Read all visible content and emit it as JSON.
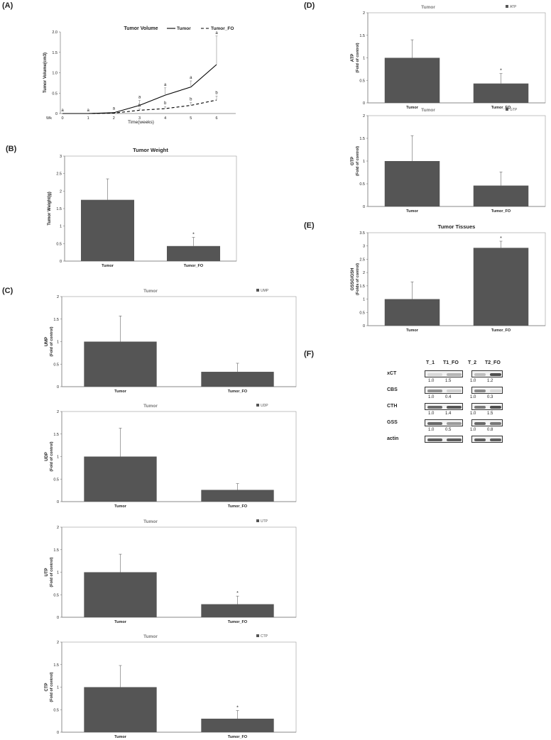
{
  "panels": {
    "A": "(A)",
    "B": "(B)",
    "C": "(C)",
    "D": "(D)",
    "E": "(E)",
    "F": "(F)"
  },
  "colors": {
    "bar": "#555555",
    "axis": "#888888"
  },
  "chart_data": [
    {
      "id": "A",
      "type": "line",
      "title": "Tumor Volume",
      "xlabel": "Time(weeks)",
      "ylabel": "Tumor Volume(cm3)",
      "x": [
        0,
        1,
        2,
        3,
        4,
        5,
        6
      ],
      "x_prefix": "Wk",
      "ylim": [
        0,
        2.0
      ],
      "yticks": [
        "0",
        "0.5",
        "1.0",
        "1.5",
        "2.0"
      ],
      "series": [
        {
          "name": "Tumor",
          "style": "solid",
          "values": [
            0,
            0,
            0.02,
            0.2,
            0.45,
            0.65,
            1.2
          ],
          "err": [
            0,
            0,
            0.02,
            0.12,
            0.18,
            0.15,
            0.7
          ],
          "labels": [
            "a",
            "a",
            "a",
            "a",
            "a",
            "a",
            "a"
          ]
        },
        {
          "name": "Tumor_FO",
          "style": "dashed",
          "values": [
            0,
            0,
            0.01,
            0.08,
            0.12,
            0.2,
            0.33
          ],
          "err": [
            0,
            0,
            0.01,
            0.03,
            0.05,
            0.07,
            0.1
          ],
          "labels": [
            "",
            "",
            "",
            "b",
            "b",
            "b",
            "b"
          ]
        }
      ]
    },
    {
      "id": "B",
      "type": "bar",
      "title": "Tumor Weight",
      "ylabel": "Tumor Weight(g)",
      "categories": [
        "Tumor",
        "Tumor_FO"
      ],
      "values": [
        1.75,
        0.43
      ],
      "err": [
        0.6,
        0.25
      ],
      "marks": [
        "",
        "*"
      ],
      "ylim": [
        0,
        3
      ],
      "yticks": [
        "0",
        "0.5",
        "1",
        "1.5",
        "2",
        "2.5",
        "3"
      ]
    },
    {
      "id": "UMP",
      "type": "bar",
      "title": "Tumor",
      "legend": "UMP",
      "ylabel": "UMP",
      "ylabel2": "(Fold of control)",
      "categories": [
        "Tumor",
        "Tumor_FO"
      ],
      "values": [
        1.0,
        0.33
      ],
      "err": [
        0.57,
        0.19
      ],
      "marks": [
        "",
        ""
      ],
      "ylim": [
        0,
        2
      ],
      "yticks": [
        "0",
        "0.5",
        "1",
        "1.5",
        "2"
      ]
    },
    {
      "id": "UDP",
      "type": "bar",
      "title": "Tumor",
      "legend": "UDP",
      "ylabel": "UDP",
      "ylabel2": "(Fold of control)",
      "categories": [
        "Tumor",
        "Tumor_FO"
      ],
      "values": [
        1.0,
        0.26
      ],
      "err": [
        0.63,
        0.14
      ],
      "marks": [
        "",
        ""
      ],
      "ylim": [
        0,
        2
      ],
      "yticks": [
        "0",
        "0.5",
        "1",
        "1.5",
        "2"
      ]
    },
    {
      "id": "UTP",
      "type": "bar",
      "title": "Tumor",
      "legend": "UTP",
      "ylabel": "UTP",
      "ylabel2": "(Fold of control)",
      "categories": [
        "Tumor",
        "Tumor_FO"
      ],
      "values": [
        1.0,
        0.29
      ],
      "err": [
        0.4,
        0.18
      ],
      "marks": [
        "",
        "*"
      ],
      "ylim": [
        0,
        2
      ],
      "yticks": [
        "0",
        "0.5",
        "1",
        "1.5",
        "2"
      ]
    },
    {
      "id": "CTP",
      "type": "bar",
      "title": "Tumor",
      "legend": "CTP",
      "ylabel": "CTP",
      "ylabel2": "(Fold of control)",
      "categories": [
        "Tumor",
        "Tumor_FO"
      ],
      "values": [
        1.0,
        0.3
      ],
      "err": [
        0.48,
        0.18
      ],
      "marks": [
        "",
        "*"
      ],
      "ylim": [
        0,
        2
      ],
      "yticks": [
        "0",
        "0.5",
        "1",
        "1.5",
        "2"
      ]
    },
    {
      "id": "ATP",
      "type": "bar",
      "title": "Tumor",
      "legend": "ATP",
      "ylabel": "ATP",
      "ylabel2": "(Fold of control)",
      "categories": [
        "Tumor",
        "Tumor_FO"
      ],
      "values": [
        1.0,
        0.43
      ],
      "err": [
        0.4,
        0.22
      ],
      "marks": [
        "",
        "*"
      ],
      "ylim": [
        0,
        2
      ],
      "yticks": [
        "0",
        "0.5",
        "1",
        "1.5",
        "2"
      ]
    },
    {
      "id": "GTP",
      "type": "bar",
      "title": "Tumor",
      "legend": "GTP",
      "ylabel": "GTP",
      "ylabel2": "(Fold of control)",
      "categories": [
        "Tumor",
        "Tumor_FO"
      ],
      "values": [
        1.0,
        0.46
      ],
      "err": [
        0.56,
        0.3
      ],
      "marks": [
        "",
        ""
      ],
      "ylim": [
        0,
        2
      ],
      "yticks": [
        "0",
        "0.5",
        "1",
        "1.5",
        "2"
      ]
    },
    {
      "id": "E",
      "type": "bar",
      "title": "Tumor Tissues",
      "ylabel": "GSSG/GSH",
      "ylabel2": "(Folds of control)",
      "categories": [
        "Tumor",
        "Tumor_FO"
      ],
      "values": [
        1.0,
        2.93
      ],
      "err": [
        0.65,
        0.25
      ],
      "marks": [
        "",
        "*"
      ],
      "ylim": [
        0,
        3.5
      ],
      "yticks": [
        "0",
        "0.5",
        "1",
        "1.5",
        "2",
        "2.5",
        "3",
        "3.5"
      ]
    }
  ],
  "blot": {
    "headers": [
      "T_1",
      "T1_FO",
      "T_2",
      "T2_FO"
    ],
    "rows": [
      {
        "name": "xCT",
        "nums": [
          "1.0",
          "1.5",
          "1.0",
          "1.2"
        ]
      },
      {
        "name": "CBS",
        "nums": [
          "1.0",
          "0.4",
          "1.0",
          "0.3"
        ]
      },
      {
        "name": "CTH",
        "nums": [
          "1.0",
          "1.4",
          "1.0",
          "1.5"
        ]
      },
      {
        "name": "GSS",
        "nums": [
          "1.0",
          "0.5",
          "1.0",
          "0.8"
        ]
      },
      {
        "name": "actin",
        "nums": []
      }
    ]
  }
}
